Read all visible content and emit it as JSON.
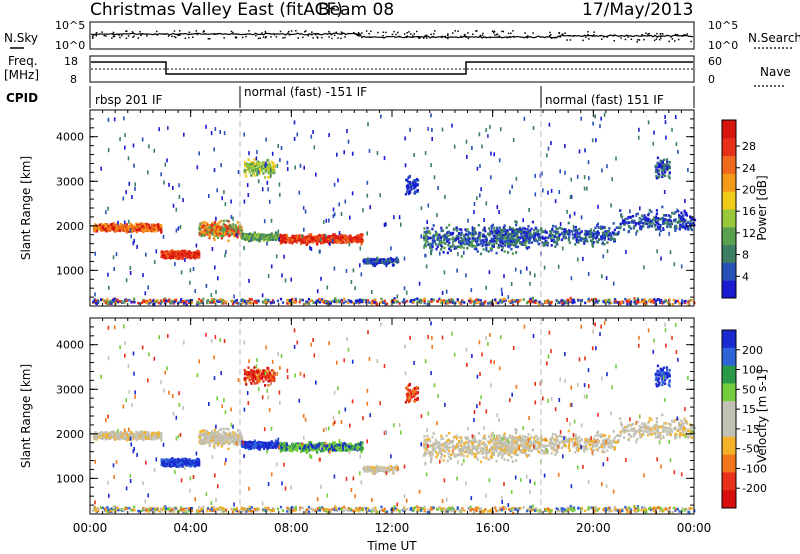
{
  "header": {
    "title": "Christmas Valley East (fitACF)",
    "beam": "Beam 08",
    "date": "17/May/2013"
  },
  "panels": {
    "nsky": {
      "label": "N.Sky",
      "right_label": "N.Search",
      "ticks_left": [
        "10^5",
        "10^0"
      ],
      "ticks_right": [
        "10^5",
        "10^0"
      ]
    },
    "freq": {
      "label_line1": "Freq.",
      "label_line2": "[MHz]",
      "right_label": "Nave",
      "ticks_left": [
        "18",
        "8"
      ],
      "ticks_right": [
        "60",
        "0"
      ]
    },
    "cpid": {
      "label": "CPID",
      "segments": [
        "rbsp 201 IF",
        "normal (fast) -151 IF",
        "normal (fast) 151 IF"
      ]
    }
  },
  "chart_data": [
    {
      "type": "heatmap",
      "name": "power",
      "ylabel": "Slant Range [km]",
      "ylim": [
        200,
        4600
      ],
      "yticks": [
        "1000",
        "2000",
        "3000",
        "4000"
      ],
      "xlim": [
        0,
        24
      ],
      "colorbar": {
        "label": "Power [dB]",
        "ticks": [
          "4",
          "8",
          "12",
          "16",
          "20",
          "24",
          "28"
        ],
        "colors": [
          "#1a1ad0",
          "#2850b8",
          "#3c7e64",
          "#5aa050",
          "#98c83a",
          "#f0cc18",
          "#f39a1a",
          "#ef6a1c",
          "#e83018",
          "#d8140e"
        ]
      }
    },
    {
      "type": "heatmap",
      "name": "velocity",
      "ylabel": "Slant Range [km]",
      "ylim": [
        200,
        4600
      ],
      "yticks": [
        "1000",
        "2000",
        "3000",
        "4000"
      ],
      "xlim": [
        0,
        24
      ],
      "xticks": [
        "00:00",
        "04:00",
        "08:00",
        "12:00",
        "16:00",
        "20:00",
        "00:00"
      ],
      "xlabel": "Time UT",
      "colorbar": {
        "label": "Velocity [m s-1]",
        "ticks": [
          "200",
          "100",
          "50",
          "15",
          "-15",
          "-50",
          "-100",
          "-200"
        ],
        "colors": [
          "#1a2ad0",
          "#2f64d8",
          "#2a9a4a",
          "#74cc3c",
          "#c2c2b4",
          "#c2c2b4",
          "#f3b22a",
          "#f0781a",
          "#e8301a",
          "#d80e0e"
        ]
      }
    }
  ]
}
